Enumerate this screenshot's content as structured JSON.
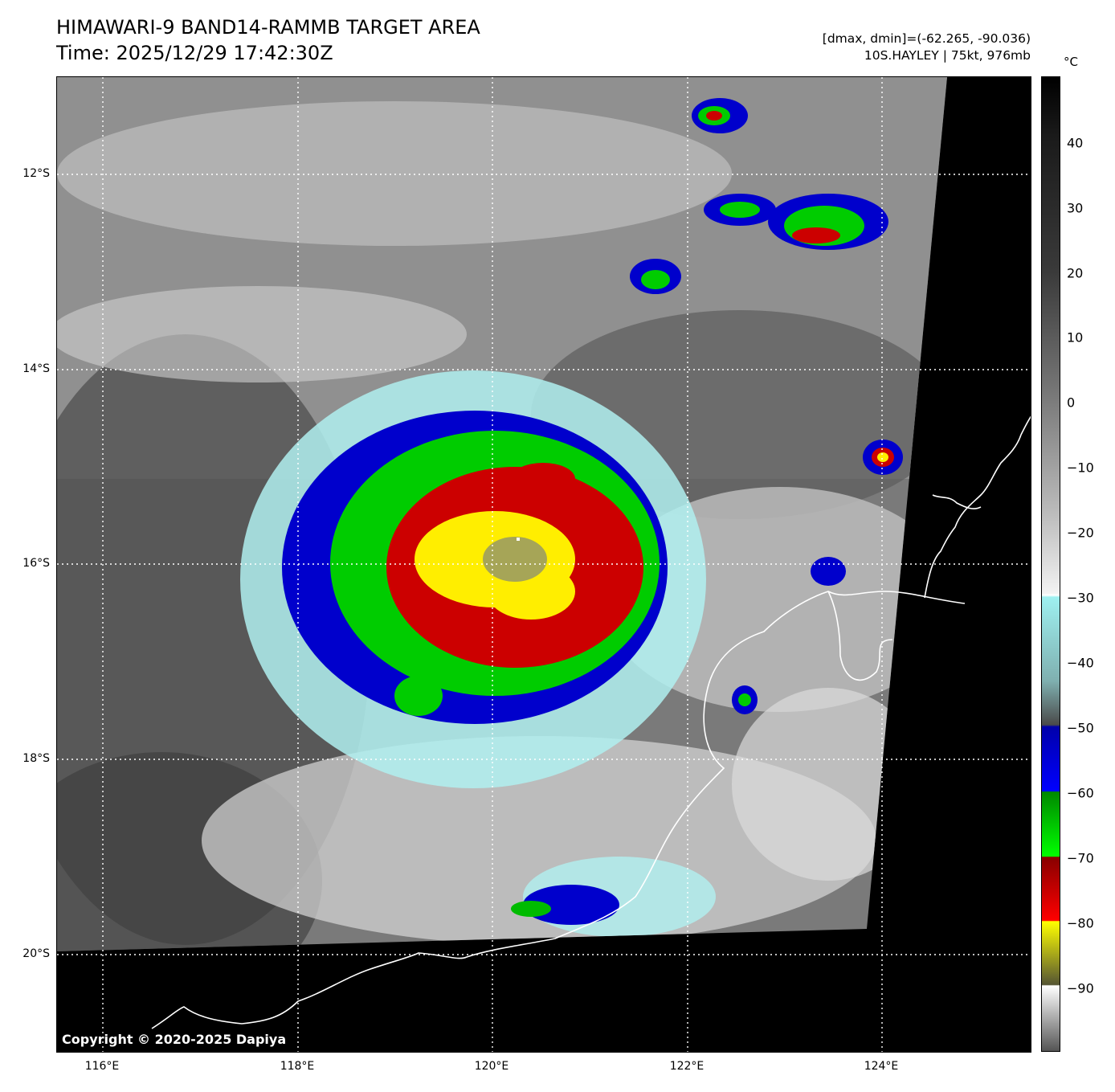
{
  "header": {
    "title_line1": "HIMAWARI-9 BAND14-RAMMB TARGET AREA",
    "title_line2": "Time: 2025/12/29 17:42:30Z",
    "range_text": "[dmax, dmin]=(-62.265, -90.036)",
    "storm_text": "10S.HAYLEY | 75kt, 976mb"
  },
  "map": {
    "lat_labels": [
      "12°S",
      "14°S",
      "16°S",
      "18°S",
      "20°S"
    ],
    "lon_labels": [
      "116°E",
      "118°E",
      "120°E",
      "122°E",
      "124°E"
    ],
    "copyright": "Copyright © 2020-2025 Dapiya",
    "features": {
      "storm_name": "10S.HAYLEY",
      "scan_edge_color": "#000000",
      "coastline_color": "#ffffff"
    }
  },
  "colorbar": {
    "unit": "°C",
    "ticks": [
      "40",
      "30",
      "20",
      "10",
      "0",
      "−10",
      "−20",
      "−30",
      "−40",
      "−50",
      "−60",
      "−70",
      "−80",
      "−90"
    ],
    "range": [
      -100,
      50
    ],
    "colors": {
      "warm_gray": "#1a1a1a",
      "cyan": "#9ef0f0",
      "blue": "#0000cc",
      "green": "#00cc00",
      "red": "#cc0000",
      "yellow": "#ffee00",
      "cold_white": "#ffffff"
    }
  }
}
